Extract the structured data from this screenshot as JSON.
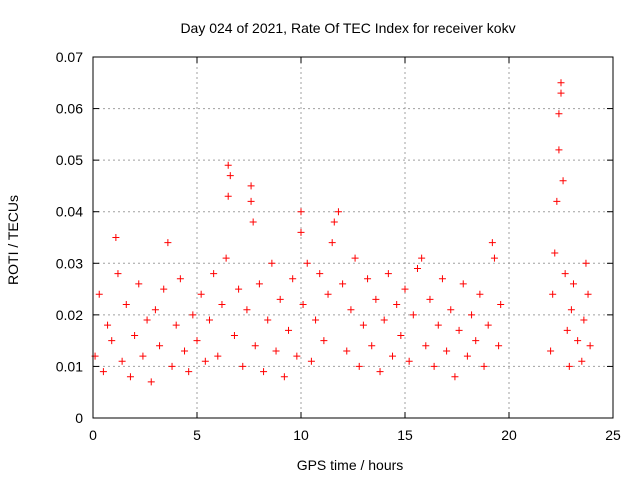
{
  "chart_data": {
    "type": "scatter",
    "title": "Day 024 of 2021, Rate Of TEC Index for receiver kokv",
    "xlabel": "GPS time / hours",
    "ylabel": "ROTI / TECUs",
    "xlim": [
      0,
      25
    ],
    "ylim": [
      0,
      0.07
    ],
    "x_ticks": [
      0,
      5,
      10,
      15,
      20,
      25
    ],
    "x_tick_labels": [
      "0",
      "5",
      "10",
      "15",
      "20",
      "25"
    ],
    "y_ticks": [
      0,
      0.01,
      0.02,
      0.03,
      0.04,
      0.05,
      0.06,
      0.07
    ],
    "y_tick_labels": [
      "0",
      "0.01",
      "0.02",
      "0.03",
      "0.04",
      "0.05",
      "0.06",
      "0.07"
    ],
    "grid": true,
    "marker": "plus",
    "marker_color": "#ff0000",
    "series": [
      {
        "points": [
          [
            0.1,
            0.012
          ],
          [
            0.3,
            0.024
          ],
          [
            0.5,
            0.009
          ],
          [
            0.7,
            0.018
          ],
          [
            0.9,
            0.015
          ],
          [
            1.1,
            0.035
          ],
          [
            1.2,
            0.028
          ],
          [
            1.4,
            0.011
          ],
          [
            1.6,
            0.022
          ],
          [
            1.8,
            0.008
          ],
          [
            2.0,
            0.016
          ],
          [
            2.2,
            0.026
          ],
          [
            2.4,
            0.012
          ],
          [
            2.6,
            0.019
          ],
          [
            2.8,
            0.007
          ],
          [
            3.0,
            0.021
          ],
          [
            3.2,
            0.014
          ],
          [
            3.4,
            0.025
          ],
          [
            3.6,
            0.034
          ],
          [
            3.8,
            0.01
          ],
          [
            4.0,
            0.018
          ],
          [
            4.2,
            0.027
          ],
          [
            4.4,
            0.013
          ],
          [
            4.6,
            0.009
          ],
          [
            4.8,
            0.02
          ],
          [
            5.0,
            0.015
          ],
          [
            5.2,
            0.024
          ],
          [
            5.4,
            0.011
          ],
          [
            5.6,
            0.019
          ],
          [
            5.8,
            0.028
          ],
          [
            6.0,
            0.012
          ],
          [
            6.2,
            0.022
          ],
          [
            6.4,
            0.031
          ],
          [
            6.5,
            0.049
          ],
          [
            6.5,
            0.043
          ],
          [
            6.6,
            0.047
          ],
          [
            6.8,
            0.016
          ],
          [
            7.0,
            0.025
          ],
          [
            7.2,
            0.01
          ],
          [
            7.4,
            0.021
          ],
          [
            7.6,
            0.045
          ],
          [
            7.6,
            0.042
          ],
          [
            7.7,
            0.038
          ],
          [
            7.8,
            0.014
          ],
          [
            8.0,
            0.026
          ],
          [
            8.2,
            0.009
          ],
          [
            8.4,
            0.019
          ],
          [
            8.6,
            0.03
          ],
          [
            8.8,
            0.013
          ],
          [
            9.0,
            0.023
          ],
          [
            9.2,
            0.008
          ],
          [
            9.4,
            0.017
          ],
          [
            9.6,
            0.027
          ],
          [
            9.8,
            0.012
          ],
          [
            10.0,
            0.04
          ],
          [
            10.0,
            0.036
          ],
          [
            10.1,
            0.022
          ],
          [
            10.3,
            0.03
          ],
          [
            10.5,
            0.011
          ],
          [
            10.7,
            0.019
          ],
          [
            10.9,
            0.028
          ],
          [
            11.1,
            0.015
          ],
          [
            11.3,
            0.024
          ],
          [
            11.5,
            0.034
          ],
          [
            11.6,
            0.038
          ],
          [
            11.8,
            0.04
          ],
          [
            12.0,
            0.026
          ],
          [
            12.2,
            0.013
          ],
          [
            12.4,
            0.021
          ],
          [
            12.6,
            0.031
          ],
          [
            12.8,
            0.01
          ],
          [
            13.0,
            0.018
          ],
          [
            13.2,
            0.027
          ],
          [
            13.4,
            0.014
          ],
          [
            13.6,
            0.023
          ],
          [
            13.8,
            0.009
          ],
          [
            14.0,
            0.019
          ],
          [
            14.2,
            0.028
          ],
          [
            14.4,
            0.012
          ],
          [
            14.6,
            0.022
          ],
          [
            14.8,
            0.016
          ],
          [
            15.0,
            0.025
          ],
          [
            15.2,
            0.011
          ],
          [
            15.4,
            0.02
          ],
          [
            15.6,
            0.029
          ],
          [
            15.8,
            0.031
          ],
          [
            16.0,
            0.014
          ],
          [
            16.2,
            0.023
          ],
          [
            16.4,
            0.01
          ],
          [
            16.6,
            0.018
          ],
          [
            16.8,
            0.027
          ],
          [
            17.0,
            0.013
          ],
          [
            17.2,
            0.021
          ],
          [
            17.4,
            0.008
          ],
          [
            17.6,
            0.017
          ],
          [
            17.8,
            0.026
          ],
          [
            18.0,
            0.012
          ],
          [
            18.2,
            0.02
          ],
          [
            18.4,
            0.015
          ],
          [
            18.6,
            0.024
          ],
          [
            18.8,
            0.01
          ],
          [
            19.0,
            0.018
          ],
          [
            19.2,
            0.034
          ],
          [
            19.3,
            0.031
          ],
          [
            19.5,
            0.014
          ],
          [
            19.6,
            0.022
          ],
          [
            22.0,
            0.013
          ],
          [
            22.1,
            0.024
          ],
          [
            22.2,
            0.032
          ],
          [
            22.3,
            0.042
          ],
          [
            22.4,
            0.052
          ],
          [
            22.4,
            0.059
          ],
          [
            22.5,
            0.063
          ],
          [
            22.5,
            0.065
          ],
          [
            22.6,
            0.046
          ],
          [
            22.7,
            0.028
          ],
          [
            22.8,
            0.017
          ],
          [
            22.9,
            0.01
          ],
          [
            23.0,
            0.021
          ],
          [
            23.1,
            0.026
          ],
          [
            23.3,
            0.015
          ],
          [
            23.5,
            0.011
          ],
          [
            23.6,
            0.019
          ],
          [
            23.7,
            0.03
          ],
          [
            23.8,
            0.024
          ],
          [
            23.9,
            0.014
          ]
        ]
      }
    ]
  }
}
